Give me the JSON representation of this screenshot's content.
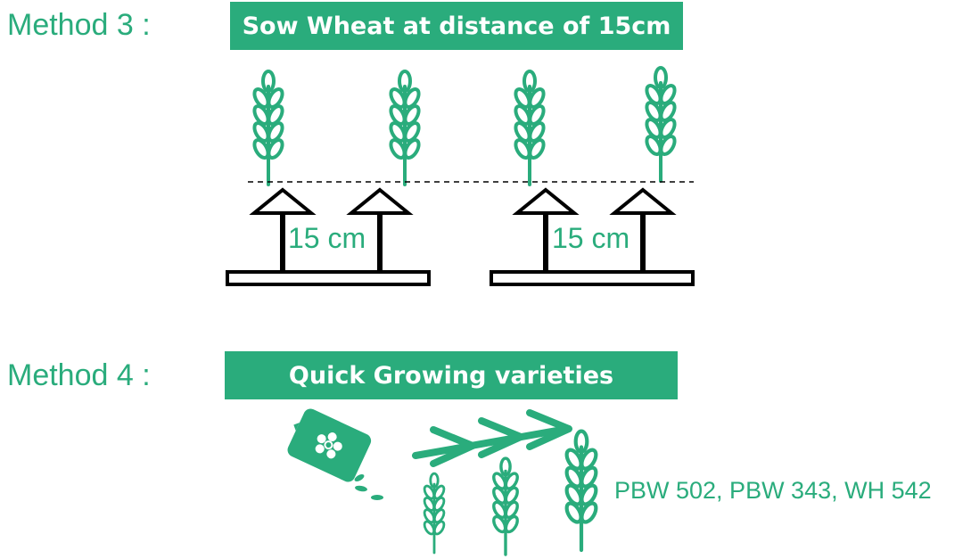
{
  "method3": {
    "label": "Method 3 :",
    "banner": "Sow Wheat at distance of 15cm",
    "left_distance": "15 cm",
    "right_distance": "15 cm"
  },
  "method4": {
    "label": "Method 4 :",
    "banner": "Quick Growing varieties",
    "varieties": "PBW 502, PBW 343, WH 542"
  },
  "colors": {
    "accent": "#2aac7c",
    "outline": "#000000"
  }
}
